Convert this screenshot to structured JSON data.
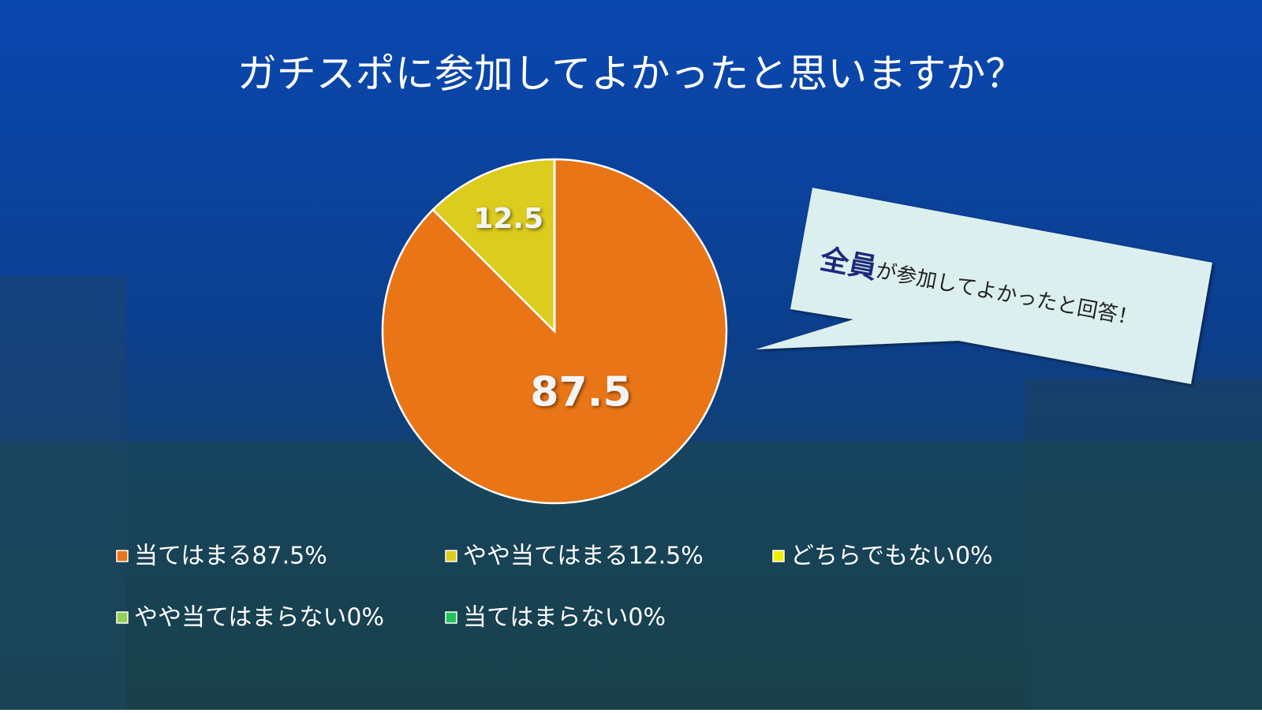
{
  "chart_data": {
    "type": "pie",
    "title": "ガチスポに参加してよかったと思いますか？",
    "categories": [
      "当てはまる87.5%",
      "やや当てはまる12.5%",
      "どちらでもない0%",
      "やや当てはまらない0%",
      "当てはまらない0%"
    ],
    "values": [
      87.5,
      12.5,
      0,
      0,
      0
    ],
    "colors": [
      "#e97516",
      "#dccc1e",
      "#f2ee00",
      "#92d050",
      "#1ec45a"
    ],
    "callout": {
      "emphasis": "全員",
      "text": "が参加してよかったと回答！"
    }
  }
}
